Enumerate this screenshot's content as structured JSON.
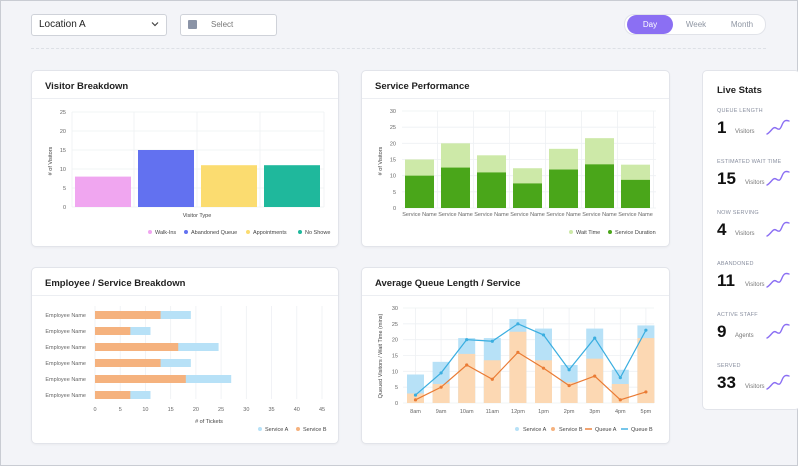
{
  "toolbar": {
    "location": "Location A",
    "date_placeholder": "Select",
    "range_tabs": [
      "Day",
      "Week",
      "Month"
    ],
    "active_range": "Day"
  },
  "colors": {
    "accent": "#8b6ff3",
    "walk_ins": "#f0a6f0",
    "abandoned": "#6271f0",
    "appointments": "#fbdc70",
    "no_shows": "#1fb89c",
    "wait_time": "#cde9a8",
    "service_duration": "#4aa61a",
    "service_a": "#b7e1f7",
    "service_b": "#f5b27e",
    "queue_a_line": "#3aaee0",
    "queue_b_line": "#ea7b34",
    "queue_bar_b": "#fcd8b3"
  },
  "visitor_breakdown": {
    "title": "Visitor Breakdown",
    "chart_data": {
      "type": "bar",
      "categories": [
        "Walk-Ins",
        "Abandoned Queue",
        "Appointments",
        "No Shows"
      ],
      "values": [
        8,
        15,
        11,
        11
      ],
      "ylabel": "# of Visitors",
      "xlabel": "Visitor Type",
      "ylim": [
        0,
        25
      ],
      "yticks": [
        "0",
        "5",
        "10",
        "15",
        "20",
        "25"
      ],
      "legend": [
        "Walk-Ins",
        "Abandoned Queue",
        "Appointments",
        "No Showe"
      ]
    }
  },
  "service_performance": {
    "title": "Service Performance",
    "chart_data": {
      "type": "bar",
      "categories": [
        "Service Name",
        "Service Name",
        "Service Name",
        "Service Name",
        "Service Name",
        "Service Name",
        "Service Name"
      ],
      "series": [
        {
          "name": "Wait Time",
          "values": [
            15,
            20,
            16.3,
            12.3,
            18.3,
            21.6,
            13.4
          ]
        },
        {
          "name": "Service Duration",
          "values": [
            10,
            12.5,
            11,
            7.6,
            11.9,
            13.5,
            8.7
          ]
        }
      ],
      "ylabel": "# of Visitors",
      "ylim": [
        0,
        30
      ],
      "yticks": [
        "0",
        "5",
        "10",
        "15",
        "20",
        "25",
        "30"
      ]
    }
  },
  "employee_breakdown": {
    "title": "Employee / Service Breakdown",
    "chart_data": {
      "type": "bar",
      "orientation": "horizontal",
      "categories": [
        "Employee Name",
        "Employee Name",
        "Employee Name",
        "Employee Name",
        "Employee Name",
        "Employee Name"
      ],
      "series": [
        {
          "name": "Service B",
          "values": [
            13,
            7,
            16.5,
            13,
            18,
            7
          ]
        },
        {
          "name": "Service A",
          "values": [
            6,
            4,
            8,
            6,
            9,
            4
          ]
        }
      ],
      "xlabel": "# of Tickets",
      "xlim": [
        0,
        45
      ],
      "xticks": [
        "0",
        "5",
        "10",
        "15",
        "20",
        "25",
        "30",
        "35",
        "40",
        "45"
      ]
    }
  },
  "avg_queue": {
    "title": "Average Queue Length / Service",
    "chart_data": {
      "type": "bar",
      "categories": [
        "8am",
        "9am",
        "10am",
        "11am",
        "12pm",
        "1pm",
        "2pm",
        "3pm",
        "4pm",
        "5pm"
      ],
      "series": [
        {
          "name": "Service A",
          "values": [
            9,
            13,
            20.5,
            20.5,
            26.5,
            23.5,
            12,
            23.5,
            10.5,
            24.5
          ]
        },
        {
          "name": "Service B",
          "values": [
            3,
            6,
            15.5,
            13.5,
            22.5,
            13.5,
            6.5,
            14,
            6,
            20.5
          ]
        },
        {
          "name": "Queue A",
          "values": [
            2.5,
            9.5,
            20,
            19.5,
            25,
            21.5,
            10.5,
            20.5,
            8,
            23
          ]
        },
        {
          "name": "Queue B",
          "values": [
            1,
            5,
            12,
            7.5,
            16,
            11,
            5.5,
            8.5,
            1,
            3.5
          ]
        }
      ],
      "ylabel": "Queued Visitors / Wait Time (mins)",
      "ylim": [
        0,
        30
      ],
      "yticks": [
        "0",
        "5",
        "10",
        "15",
        "20",
        "25",
        "30"
      ],
      "legend": [
        "Service A",
        "Service B",
        "Queue A",
        "Queue B"
      ]
    }
  },
  "live_stats": {
    "title": "Live Stats",
    "items": [
      {
        "label": "QUEUE LENGTH",
        "value": "1",
        "unit": "Visitors"
      },
      {
        "label": "ESTIMATED WAIT TIME",
        "value": "15",
        "unit": "Visitors"
      },
      {
        "label": "NOW SERVING",
        "value": "4",
        "unit": "Visitors"
      },
      {
        "label": "ABANDONED",
        "value": "11",
        "unit": "Visitors"
      },
      {
        "label": "ACTIVE STAFF",
        "value": "9",
        "unit": "Agents"
      },
      {
        "label": "SERVED",
        "value": "33",
        "unit": "Visitors"
      }
    ]
  }
}
